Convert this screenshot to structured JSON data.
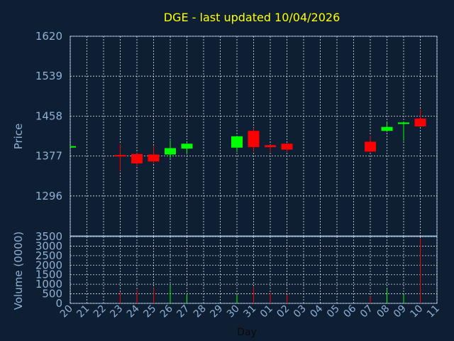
{
  "chart_data": {
    "type": "candlestick",
    "title": "DGE - last updated 10/04/2026",
    "xlabel": "Day",
    "colors": {
      "up": "#00ff00",
      "down": "#ff0000",
      "text": "#8fb0d6",
      "title": "#ffff00",
      "background": "#0f1f33"
    },
    "x_ticks": [
      "20",
      "21",
      "22",
      "23",
      "24",
      "25",
      "26",
      "27",
      "28",
      "29",
      "30",
      "31",
      "01",
      "02",
      "03",
      "04",
      "05",
      "06",
      "07",
      "08",
      "09",
      "10",
      "11"
    ],
    "price": {
      "ylabel": "Price",
      "ylim": [
        1215,
        1620
      ],
      "y_ticks": [
        "1296",
        "1377",
        "1458",
        "1539",
        "1620"
      ],
      "grid": true,
      "candles": [
        {
          "x": "20",
          "open": 1397,
          "close": 1397,
          "high": 1398,
          "low": 1396
        },
        {
          "x": "23",
          "open": 1379,
          "close": 1378,
          "high": 1401,
          "low": 1347
        },
        {
          "x": "24",
          "open": 1381,
          "close": 1362,
          "high": 1383,
          "low": 1356
        },
        {
          "x": "25",
          "open": 1380,
          "close": 1366,
          "high": 1397,
          "low": 1362
        },
        {
          "x": "26",
          "open": 1380,
          "close": 1393,
          "high": 1409,
          "low": 1373
        },
        {
          "x": "27",
          "open": 1392,
          "close": 1402,
          "high": 1403,
          "low": 1380
        },
        {
          "x": "30",
          "open": 1394,
          "close": 1417,
          "high": 1418,
          "low": 1385
        },
        {
          "x": "31",
          "open": 1428,
          "close": 1395,
          "high": 1434,
          "low": 1387
        },
        {
          "x": "01",
          "open": 1399,
          "close": 1395,
          "high": 1400,
          "low": 1385
        },
        {
          "x": "02",
          "open": 1402,
          "close": 1390,
          "high": 1403,
          "low": 1385
        },
        {
          "x": "07",
          "open": 1406,
          "close": 1386,
          "high": 1418,
          "low": 1385
        },
        {
          "x": "08",
          "open": 1428,
          "close": 1436,
          "high": 1445,
          "low": 1426
        },
        {
          "x": "09",
          "open": 1442,
          "close": 1445,
          "high": 1447,
          "low": 1408
        },
        {
          "x": "10",
          "open": 1453,
          "close": 1437,
          "high": 1472,
          "low": 1437
        }
      ]
    },
    "volume": {
      "ylabel": "Volume (0000)",
      "ylim": [
        0,
        3500
      ],
      "y_ticks": [
        "0",
        "500",
        "1000",
        "1500",
        "2000",
        "2500",
        "3000",
        "3500"
      ],
      "grid": true,
      "bars": [
        {
          "x": "23",
          "value": 600,
          "direction": "down"
        },
        {
          "x": "24",
          "value": 700,
          "direction": "down"
        },
        {
          "x": "25",
          "value": 800,
          "direction": "down"
        },
        {
          "x": "26",
          "value": 950,
          "direction": "up"
        },
        {
          "x": "27",
          "value": 500,
          "direction": "up"
        },
        {
          "x": "30",
          "value": 450,
          "direction": "up"
        },
        {
          "x": "31",
          "value": 850,
          "direction": "down"
        },
        {
          "x": "01",
          "value": 550,
          "direction": "down"
        },
        {
          "x": "02",
          "value": 450,
          "direction": "down"
        },
        {
          "x": "07",
          "value": 350,
          "direction": "down"
        },
        {
          "x": "08",
          "value": 750,
          "direction": "up"
        },
        {
          "x": "09",
          "value": 450,
          "direction": "up"
        },
        {
          "x": "10",
          "value": 3400,
          "direction": "down"
        }
      ]
    }
  }
}
